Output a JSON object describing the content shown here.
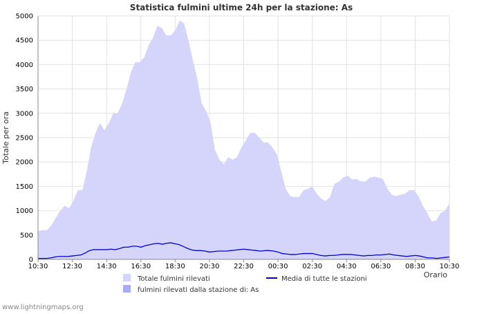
{
  "chart_data": {
    "type": "area",
    "title": "Statistica fulmini ultime 24h per la stazione: As",
    "xlabel": "Orario",
    "ylabel": "Totale per ora",
    "ylim": [
      0,
      5000
    ],
    "y_ticks": [
      0,
      500,
      1000,
      1500,
      2000,
      2500,
      3000,
      3500,
      4000,
      4500,
      5000
    ],
    "x_ticks": [
      "10:30",
      "12:30",
      "14:30",
      "16:30",
      "18:30",
      "20:30",
      "22:30",
      "00:30",
      "02:30",
      "04:30",
      "06:30",
      "08:30",
      "10:30"
    ],
    "grid": true,
    "legend_position": "bottom",
    "series": [
      {
        "name": "Totale fulmini rilevati",
        "kind": "area",
        "color": "#d5d5fc",
        "values": [
          580,
          600,
          600,
          700,
          850,
          1000,
          1100,
          1050,
          1200,
          1420,
          1420,
          1800,
          2300,
          2600,
          2800,
          2650,
          2800,
          3000,
          3000,
          3200,
          3500,
          3850,
          4050,
          4050,
          4150,
          4400,
          4550,
          4800,
          4750,
          4600,
          4600,
          4700,
          4900,
          4850,
          4500,
          4100,
          3700,
          3200,
          3050,
          2800,
          2250,
          2050,
          1950,
          2100,
          2050,
          2100,
          2300,
          2450,
          2600,
          2600,
          2500,
          2400,
          2400,
          2300,
          2150,
          1800,
          1450,
          1300,
          1280,
          1280,
          1420,
          1450,
          1500,
          1350,
          1250,
          1200,
          1280,
          1550,
          1600,
          1680,
          1720,
          1640,
          1650,
          1600,
          1600,
          1680,
          1700,
          1680,
          1650,
          1450,
          1320,
          1300,
          1330,
          1350,
          1420,
          1420,
          1300,
          1100,
          950,
          780,
          800,
          950,
          1000,
          1150
        ]
      },
      {
        "name": "fulmini rilevati dalla stazione di: As",
        "kind": "area",
        "color": "#aaaaf5",
        "values": []
      },
      {
        "name": "Media di tutte le stazioni",
        "kind": "line",
        "color": "#0000cc",
        "values": [
          20,
          20,
          20,
          30,
          50,
          60,
          60,
          60,
          70,
          80,
          90,
          130,
          180,
          200,
          200,
          200,
          200,
          210,
          200,
          220,
          250,
          250,
          270,
          270,
          250,
          280,
          300,
          320,
          330,
          310,
          330,
          340,
          320,
          300,
          260,
          220,
          190,
          180,
          180,
          170,
          150,
          160,
          170,
          170,
          170,
          180,
          190,
          200,
          210,
          200,
          190,
          180,
          170,
          180,
          180,
          170,
          150,
          120,
          110,
          100,
          100,
          110,
          120,
          120,
          120,
          100,
          80,
          70,
          80,
          80,
          90,
          100,
          100,
          100,
          90,
          80,
          70,
          80,
          80,
          90,
          90,
          100,
          110,
          90,
          80,
          70,
          60,
          70,
          80,
          70,
          50,
          30,
          30,
          20,
          30,
          40,
          50
        ]
      }
    ],
    "footer": "www.lightningmaps.org"
  }
}
